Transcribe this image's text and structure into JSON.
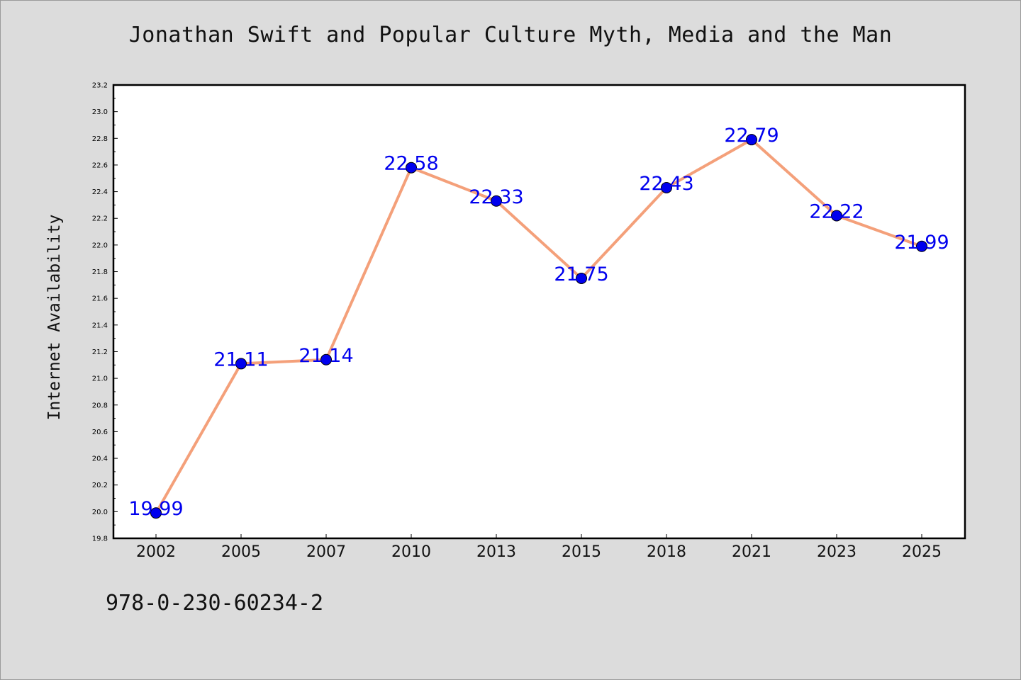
{
  "chart_data": {
    "type": "line",
    "title": "Jonathan Swift and Popular Culture Myth, Media and the Man",
    "xlabel": "",
    "ylabel": "Internet Availability",
    "categories": [
      "2002",
      "2005",
      "2007",
      "2010",
      "2013",
      "2015",
      "2018",
      "2021",
      "2023",
      "2025"
    ],
    "values": [
      19.99,
      21.11,
      21.14,
      22.58,
      22.33,
      21.75,
      22.43,
      22.79,
      22.22,
      21.99
    ],
    "data_labels": [
      "19.99",
      "21.11",
      "21.14",
      "22.58",
      "22.33",
      "21.75",
      "22.43",
      "22.79",
      "22.22",
      "21.99"
    ],
    "ylim": [
      19.8,
      23.2
    ],
    "yticks": [
      "19.8",
      "20.0",
      "20.2",
      "20.4",
      "20.6",
      "20.8",
      "21.0",
      "21.2",
      "21.4",
      "21.6",
      "21.8",
      "22.0",
      "22.2",
      "22.4",
      "22.6",
      "22.8",
      "23.0",
      "23.2"
    ],
    "grid": false,
    "legend": "none",
    "colors": {
      "line": "#f4a07a",
      "marker": "#0000ee",
      "data_label": "#0000ee",
      "background": "#dcdcdc",
      "plot_background": "#ffffff"
    }
  },
  "footer": {
    "code": "978-0-230-60234-2"
  }
}
